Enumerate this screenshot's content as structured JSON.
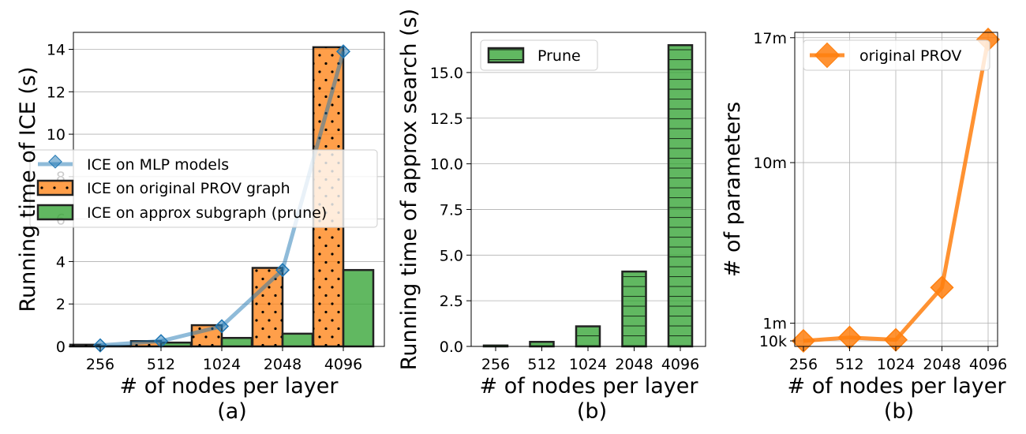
{
  "chart_data": [
    {
      "type": "bar",
      "subtitle": "(a)",
      "xlabel": "# of nodes per layer",
      "ylabel": "Running time of ICE (s)",
      "categories": [
        "256",
        "512",
        "1024",
        "2048",
        "4096"
      ],
      "ylim": [
        0,
        14.8
      ],
      "yticks": [
        0,
        2,
        4,
        6,
        8,
        10,
        12,
        14
      ],
      "grid": "y",
      "legend_position": "center-left",
      "series": [
        {
          "name": "ICE on MLP models",
          "type": "line",
          "color": "#1f77b4",
          "marker": "diamond",
          "values": [
            0.05,
            0.25,
            0.95,
            3.6,
            13.9
          ]
        },
        {
          "name": "ICE on original PROV graph",
          "type": "bar",
          "color": "#ff7f0e",
          "hatch": "dots",
          "values": [
            0.08,
            0.25,
            1.0,
            3.7,
            14.1
          ]
        },
        {
          "name": "ICE on approx subgraph (prune)",
          "type": "bar",
          "color": "#2ca02c",
          "hatch": "none",
          "values": [
            0.02,
            0.18,
            0.4,
            0.6,
            3.6
          ]
        }
      ]
    },
    {
      "type": "bar",
      "subtitle": "(b)",
      "xlabel": "# of nodes per layer",
      "ylabel": "Running time of approx search (s)",
      "categories": [
        "256",
        "512",
        "1024",
        "2048",
        "4096"
      ],
      "ylim": [
        0,
        17.2
      ],
      "yticks": [
        0.0,
        2.5,
        5.0,
        7.5,
        10.0,
        12.5,
        15.0
      ],
      "ytick_labels": [
        "0.0",
        "2.5",
        "5.0",
        "7.5",
        "10.0",
        "12.5",
        "15.0"
      ],
      "grid": "y",
      "legend_position": "top-left",
      "series": [
        {
          "name": "Prune",
          "type": "bar",
          "color": "#2ca02c",
          "hatch": "horizontal",
          "values": [
            0.05,
            0.25,
            1.1,
            4.1,
            16.5
          ]
        }
      ]
    },
    {
      "type": "line",
      "subtitle": "(b)",
      "xlabel": "# of nodes per layer",
      "ylabel": "# of parameters",
      "categories": [
        "256",
        "512",
        "1024",
        "2048",
        "4096"
      ],
      "ylim": [
        -0.3,
        17.3
      ],
      "yticks": [
        0.01,
        1,
        10,
        17
      ],
      "ytick_labels": [
        "10k",
        "1m",
        "10m",
        "17m"
      ],
      "y_unit": "millions",
      "grid": "both",
      "legend_position": "top-right",
      "series": [
        {
          "name": "original PROV",
          "type": "line",
          "color": "#ff7f0e",
          "marker": "diamond",
          "values": [
            0.01,
            0.2,
            0.07,
            3.0,
            16.9
          ]
        }
      ]
    }
  ]
}
